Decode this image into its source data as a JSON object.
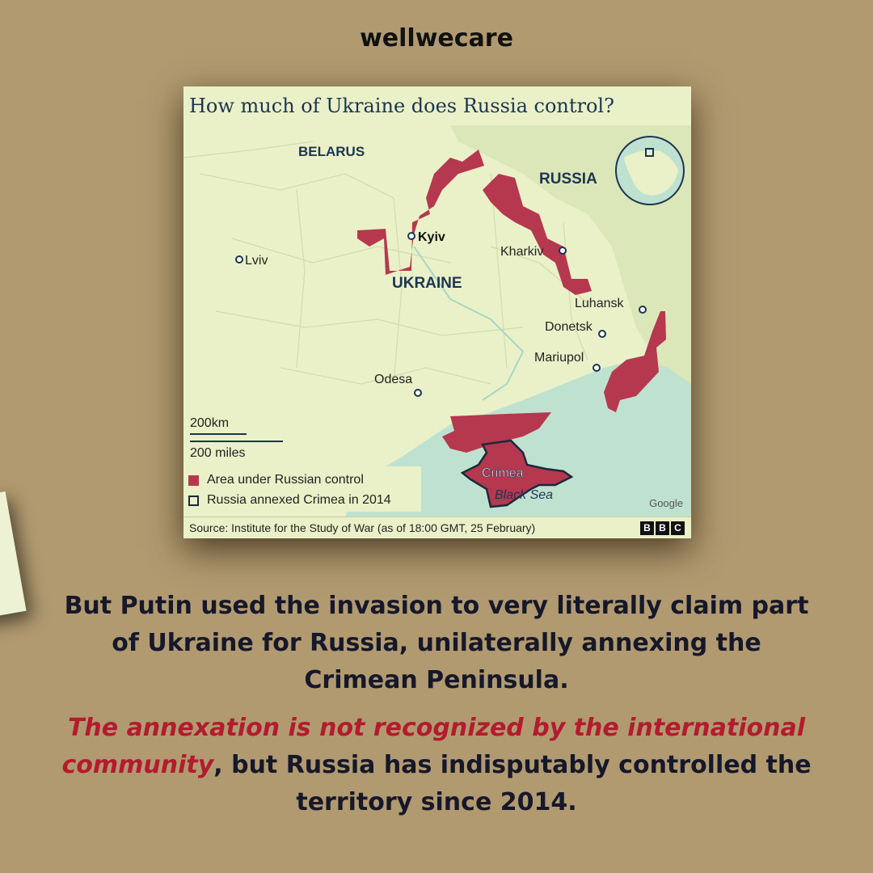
{
  "brand": "wellwecare",
  "map": {
    "title": "How much of Ukraine does Russia control?",
    "labels": {
      "belarus": "BELARUS",
      "russia": "RUSSIA",
      "ukraine": "UKRAINE",
      "kyiv": "Kyiv",
      "lviv": "Lviv",
      "kharkiv": "Kharkiv",
      "luhansk": "Luhansk",
      "donetsk": "Donetsk",
      "mariupol": "Mariupol",
      "odesa": "Odesa",
      "crimea": "Crimea",
      "black_sea": "Black Sea"
    },
    "scale": {
      "km": "200km",
      "miles": "200 miles"
    },
    "legend": {
      "control": "Area under Russian control",
      "annexed": "Russia annexed Crimea in 2014"
    },
    "attribution": "Google",
    "source": "Source: Institute for the Study of War (as of 18:00 GMT, 25 February)",
    "logo": [
      "B",
      "B",
      "C"
    ],
    "colors": {
      "land": "#eaf1c8",
      "russia_land": "#dbe7b8",
      "sea": "#bfe2d0",
      "control": "#b5384f",
      "text": "#1c3552"
    }
  },
  "text": {
    "para1_lines": [
      "But Putin used the invasion to very literally claim part",
      "of Ukraine for Russia, unilaterally annexing the",
      "Crimean Peninsula."
    ],
    "para2_highlight_1": "The annexation is not recognized by the international",
    "para2_highlight_2": "community",
    "para2_rest_1": ", but Russia has indisputably controlled the",
    "para2_line3": "territory since 2014."
  }
}
